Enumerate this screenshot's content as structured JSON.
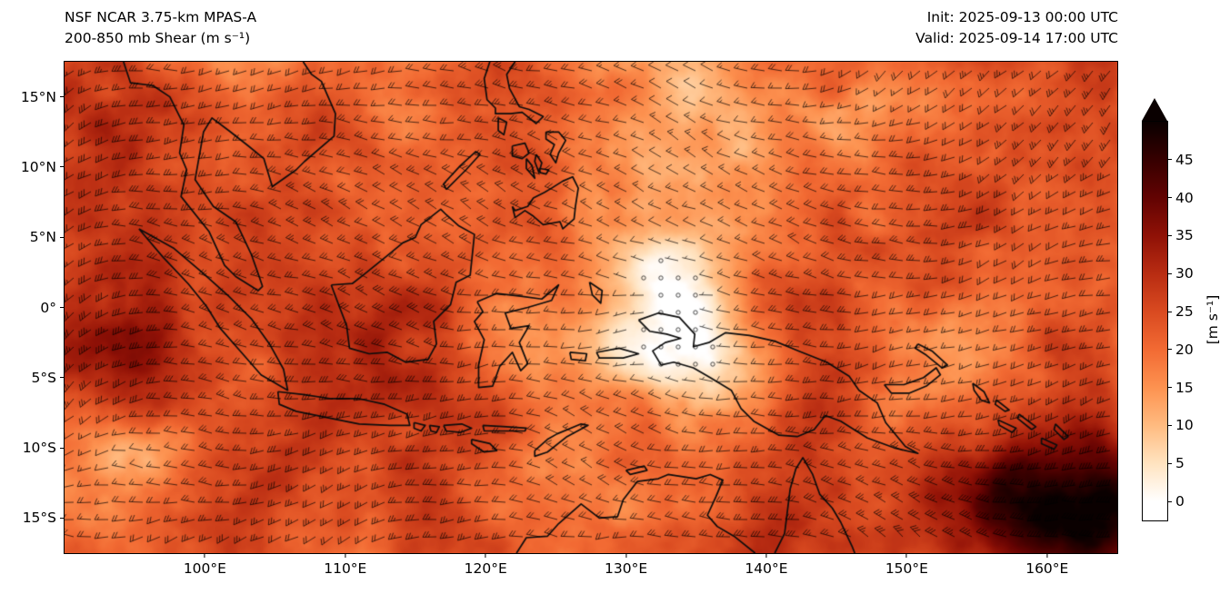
{
  "header": {
    "model_title": "NSF NCAR 3.75-km MPAS-A",
    "field_title": "200-850 mb Shear (m s⁻¹)",
    "init_time": "Init: 2025-09-13 00:00 UTC",
    "valid_time": "Valid: 2025-09-14 17:00 UTC"
  },
  "chart_data": {
    "type": "heatmap",
    "title": "NSF NCAR 3.75-km MPAS-A — 200-850 mb Shear (m s⁻¹)",
    "model": "NSF NCAR 3.75-km MPAS-A",
    "field": "200-850 mb wind shear magnitude",
    "units": "m s⁻¹",
    "init": "2025-09-13 00:00 UTC",
    "valid": "2025-09-14 17:00 UTC",
    "overlay": "wind shear barbs; open circles where shear < 2.5 m s⁻¹",
    "projection_extent": {
      "lon_min": 90,
      "lon_max": 165,
      "lat_min": -17.5,
      "lat_max": 17.5
    },
    "x_ticks": [
      {
        "label": "100°E",
        "value": 100
      },
      {
        "label": "110°E",
        "value": 110
      },
      {
        "label": "120°E",
        "value": 120
      },
      {
        "label": "130°E",
        "value": 130
      },
      {
        "label": "140°E",
        "value": 140
      },
      {
        "label": "150°E",
        "value": 150
      },
      {
        "label": "160°E",
        "value": 160
      }
    ],
    "y_ticks": [
      {
        "label": "15°N",
        "value": 15
      },
      {
        "label": "10°N",
        "value": 10
      },
      {
        "label": "5°N",
        "value": 5
      },
      {
        "label": "0°",
        "value": 0
      },
      {
        "label": "5°S",
        "value": -5
      },
      {
        "label": "10°S",
        "value": -10
      },
      {
        "label": "15°S",
        "value": -15
      }
    ],
    "colorbar": {
      "label": "[m s⁻¹]",
      "ticks": [
        0,
        5,
        10,
        15,
        20,
        25,
        30,
        35,
        40,
        45
      ],
      "vmin": -2.5,
      "vmax": 50,
      "extend": "max",
      "colormap_stops": [
        "#ffffff",
        "#ffe3c0",
        "#ffbb80",
        "#fd9250",
        "#f26a33",
        "#d94a20",
        "#b82c12",
        "#8f1106",
        "#620302",
        "#360000",
        "#0a0000"
      ]
    }
  }
}
